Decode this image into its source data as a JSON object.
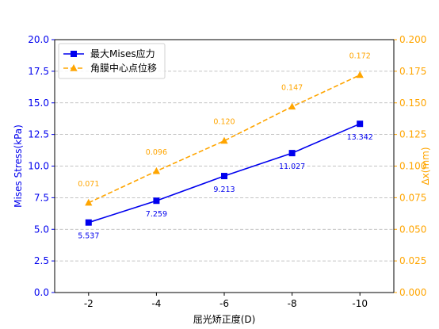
{
  "chart_data": {
    "type": "line",
    "categories": [
      "-2",
      "-4",
      "-6",
      "-8",
      "-10"
    ],
    "xlabel": "屈光矫正度(D)",
    "ylabel_left": "Mises Stress(kPa)",
    "ylabel_right": "Δx(mm)",
    "ylim_left": [
      0,
      20
    ],
    "ylim_right": [
      0,
      0.2
    ],
    "yticks_left": [
      "0.0",
      "2.5",
      "5.0",
      "7.5",
      "10.0",
      "12.5",
      "15.0",
      "17.5",
      "20.0"
    ],
    "yticks_right": [
      "0.000",
      "0.025",
      "0.050",
      "0.075",
      "0.100",
      "0.125",
      "0.150",
      "0.175",
      "0.200"
    ],
    "grid": true,
    "legend_position": "top-left",
    "series": [
      {
        "name": "最大Mises应力",
        "axis": "left",
        "color": "#0000ee",
        "marker": "square",
        "line_style": "solid",
        "values": [
          5.537,
          7.259,
          9.213,
          11.027,
          13.342
        ],
        "labels": [
          "5.537",
          "7.259",
          "9.213",
          "11.027",
          "13.342"
        ]
      },
      {
        "name": "角膜中心点位移",
        "axis": "right",
        "color": "#ffa500",
        "marker": "triangle",
        "line_style": "dashed",
        "values": [
          0.071,
          0.096,
          0.12,
          0.147,
          0.172
        ],
        "labels": [
          "0.071",
          "0.096",
          "0.120",
          "0.147",
          "0.172"
        ]
      }
    ]
  }
}
